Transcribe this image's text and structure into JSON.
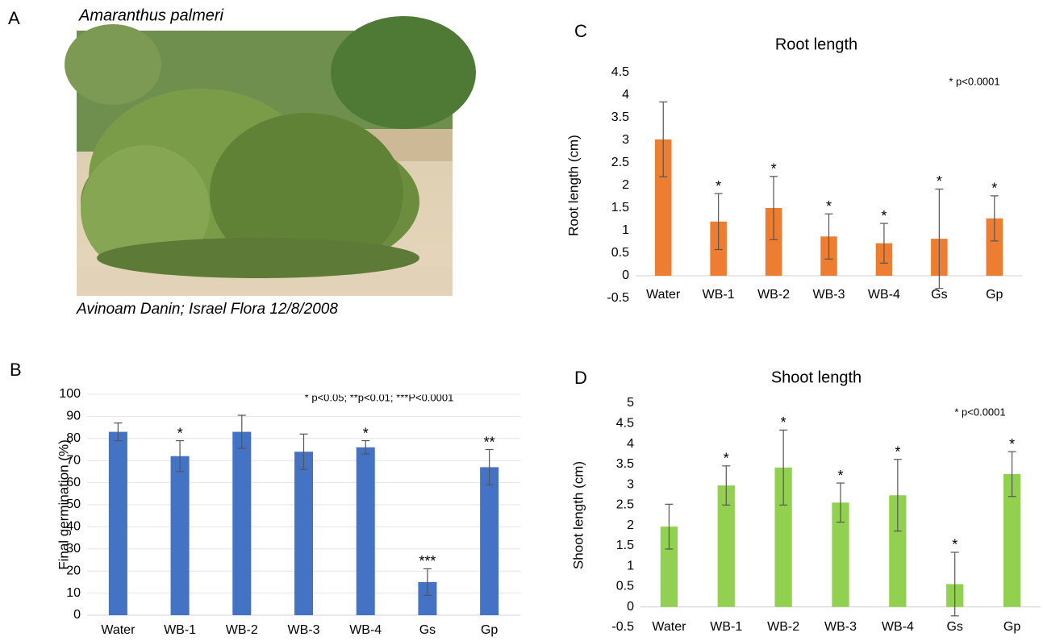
{
  "photo": {
    "label": "A",
    "species": "Amaranthus palmeri",
    "credit": "Avinoam Danin; Israel Flora 12/8/2008"
  },
  "chart_data": [
    {
      "type": "bar",
      "label": "B",
      "y_label": "Final germination (%)",
      "annotation": "* p<0.05; **p<0.01; ***P<0.0001",
      "categories": [
        "Water",
        "WB-1",
        "WB-2",
        "WB-3",
        "WB-4",
        "Gs",
        "Gp"
      ],
      "values": [
        83,
        72,
        83,
        74,
        76,
        15,
        67
      ],
      "errors": [
        4,
        7,
        7.5,
        8,
        3,
        6,
        8
      ],
      "significance": [
        null,
        "*",
        null,
        null,
        "*",
        "***",
        "**"
      ],
      "color": "#4472c4",
      "ylim": [
        0,
        100
      ],
      "yticks": [
        0,
        10,
        20,
        30,
        40,
        50,
        60,
        70,
        80,
        90,
        100
      ],
      "grid": true
    },
    {
      "type": "bar",
      "label": "C",
      "title": "Root length",
      "y_label": "Root length (cm)",
      "annotation": "* p<0.0001",
      "categories": [
        "Water",
        "WB-1",
        "WB-2",
        "WB-3",
        "WB-4",
        "Gs",
        "Gp"
      ],
      "values": [
        3.02,
        1.2,
        1.5,
        0.87,
        0.72,
        0.82,
        1.27
      ],
      "errors": [
        0.83,
        0.62,
        0.7,
        0.5,
        0.44,
        1.1,
        0.5
      ],
      "significance": [
        null,
        "*",
        "*",
        "*",
        "*",
        "*",
        "*"
      ],
      "color": "#ed7d31",
      "ylim": [
        -0.5,
        4.5
      ],
      "yticks": [
        -0.5,
        0,
        0.5,
        1,
        1.5,
        2,
        2.5,
        3,
        3.5,
        4,
        4.5
      ],
      "grid": false
    },
    {
      "type": "bar",
      "label": "D",
      "title": "Shoot length",
      "y_label": "Shoot length (cm)",
      "annotation": "* p<0.0001",
      "categories": [
        "Water",
        "WB-1",
        "WB-2",
        "WB-3",
        "WB-4",
        "Gs",
        "Gp"
      ],
      "values": [
        1.97,
        2.98,
        3.42,
        2.56,
        2.74,
        0.56,
        3.26
      ],
      "errors": [
        0.55,
        0.48,
        0.92,
        0.48,
        0.88,
        0.78,
        0.55
      ],
      "significance": [
        null,
        "*",
        "*",
        "*",
        "*",
        "*",
        "*"
      ],
      "color": "#92d050",
      "ylim": [
        -0.5,
        5
      ],
      "yticks": [
        -0.5,
        0,
        0.5,
        1,
        1.5,
        2,
        2.5,
        3,
        3.5,
        4,
        4.5,
        5
      ],
      "grid": false
    }
  ]
}
